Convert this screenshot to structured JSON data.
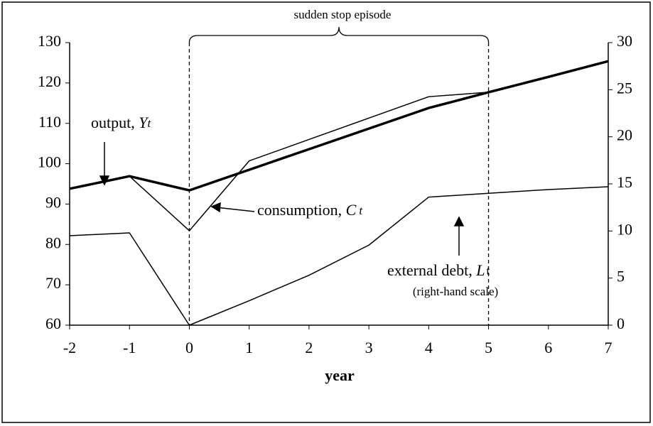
{
  "chart_data": {
    "type": "line",
    "x": [
      -2,
      -1,
      0,
      1,
      2,
      3,
      4,
      5,
      6,
      7
    ],
    "xlim": [
      -2,
      7
    ],
    "xticks": [
      -2,
      -1,
      0,
      1,
      2,
      3,
      4,
      5,
      6,
      7
    ],
    "ylim": [
      60,
      130
    ],
    "yticks": [
      60,
      70,
      80,
      90,
      100,
      110,
      120,
      130
    ],
    "y2lim": [
      0,
      30
    ],
    "y2ticks": [
      0,
      5,
      10,
      15,
      20,
      25,
      30
    ],
    "xlabel": "year",
    "series": [
      {
        "name": "output",
        "color": "#000000",
        "width": 3.5,
        "values": [
          93.8,
          96.9,
          93.4,
          98.5,
          103.6,
          108.7,
          113.8,
          117.7,
          121.5,
          125.4
        ]
      },
      {
        "name": "consumption",
        "color": "#000000",
        "width": 1.5,
        "values": [
          93.8,
          96.9,
          83.4,
          100.7,
          106.0,
          111.3,
          116.6,
          117.7,
          121.5,
          125.4
        ]
      },
      {
        "name": "external debt",
        "color": "#000000",
        "width": 1.5,
        "axis": "y2",
        "values": [
          9.5,
          9.8,
          0,
          2.6,
          5.3,
          8.5,
          13.6,
          14.0,
          14.4,
          14.7
        ]
      }
    ],
    "episode": {
      "label": "sudden stop episode",
      "start": 0,
      "end": 5
    },
    "annotations": [
      {
        "text": "output, ",
        "var": "Y",
        "sub": "t"
      },
      {
        "text": "consumption, ",
        "var": "C",
        "sub": "t"
      },
      {
        "text": "external debt, ",
        "var": "L",
        "sub": "t",
        "note": "(right-hand scale)"
      }
    ]
  }
}
